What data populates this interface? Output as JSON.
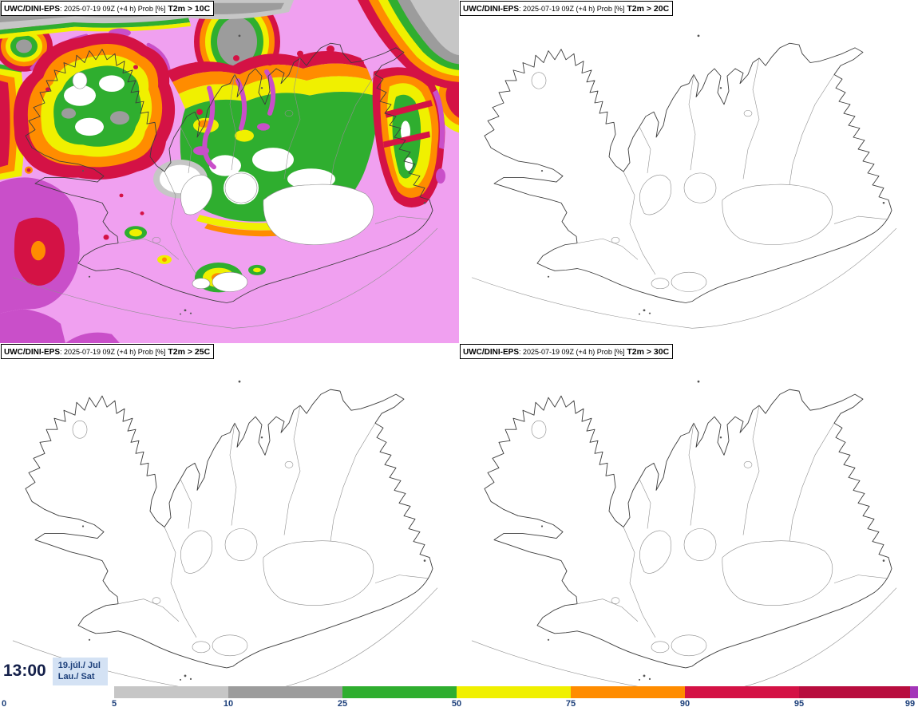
{
  "panels": [
    {
      "source": "UWC/DINI-EPS",
      "meta": ": 2025-07-19 09Z (+4 h) Prob [%]",
      "threshold": "T2m > 10C"
    },
    {
      "source": "UWC/DINI-EPS",
      "meta": ": 2025-07-19 09Z (+4 h) Prob [%]",
      "threshold": "T2m > 20C"
    },
    {
      "source": "UWC/DINI-EPS",
      "meta": ": 2025-07-19 09Z (+4 h) Prob [%]",
      "threshold": "T2m > 25C"
    },
    {
      "source": "UWC/DINI-EPS",
      "meta": ": 2025-07-19 09Z (+4 h) Prob [%]",
      "threshold": "T2m > 30C"
    }
  ],
  "footer": {
    "time": "13:00",
    "date_line1": "19.júl./ Jul",
    "date_line2": "Lau./ Sat"
  },
  "colorbar": {
    "tick_labels": [
      "0",
      "5",
      "10",
      "25",
      "50",
      "75",
      "90",
      "95",
      "99"
    ],
    "segments": [
      {
        "range": "0-5",
        "color": "#ffffff"
      },
      {
        "range": "5-10",
        "color": "#c6c6c6"
      },
      {
        "range": "10-25",
        "color": "#9c9c9c"
      },
      {
        "range": "25-50",
        "color": "#2fae2f"
      },
      {
        "range": "50-75",
        "color": "#f0f000"
      },
      {
        "range": "75-90",
        "color": "#ff8c00"
      },
      {
        "range": "90-95",
        "color": "#d41245"
      },
      {
        "range": "95-99",
        "color": "#b80d3e"
      },
      {
        "range": "99-100",
        "color": "#a335b8"
      }
    ]
  },
  "colors": {
    "pink": "#f0a0f0",
    "magenta": "#c94fc9",
    "crimson": "#d41245",
    "orange": "#ff8c00",
    "yellow": "#f0f000",
    "green": "#2fae2f",
    "gray1": "#c6c6c6",
    "gray2": "#9c9c9c",
    "label_navy": "#1c3f7a",
    "datebox_bg": "#d4e2f4",
    "time_text": "#14204a"
  }
}
